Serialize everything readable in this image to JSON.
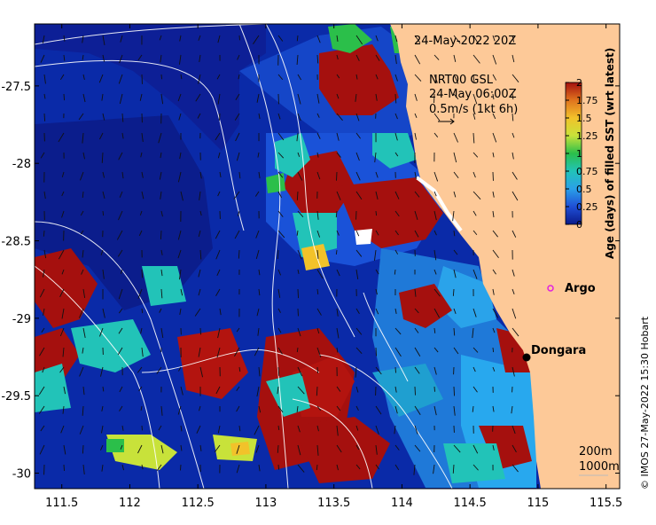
{
  "map": {
    "date_label": "24-May-2022 20Z",
    "current_title": "NRT00 GSL",
    "current_time": "24-May 06:00Z",
    "current_scale": "0.5m/s (1kt 6h)",
    "places": [
      {
        "name": "Argo",
        "lon": 115.15,
        "lat": -28.77,
        "marker": "magenta-ring"
      },
      {
        "name": "Dongara",
        "lon": 114.93,
        "lat": -29.25,
        "marker": "black-dot"
      }
    ],
    "contour_legend": [
      "200m",
      "1000m"
    ],
    "credit": "© IMOS 27-May-2022 15:30 Hobart",
    "axes": {
      "x_ticks": [
        "111.5",
        "112",
        "112.5",
        "113",
        "113.5",
        "114",
        "114.5",
        "115",
        "115.5"
      ],
      "y_ticks": [
        "-27.5",
        "-28",
        "-28.5",
        "-29",
        "-29.5",
        "-30"
      ],
      "lon_range": [
        111.3,
        115.6
      ],
      "lat_range": [
        -30.1,
        -27.1
      ]
    },
    "colorbar": {
      "label": "Age (days) of filled SST (wrt latest)",
      "ticks": [
        "0",
        "0.25",
        "0.5",
        "0.75",
        "1",
        "1.25",
        "1.5",
        "1.75",
        "2"
      ],
      "range": [
        0,
        2
      ],
      "colors": [
        "#0a1a8a",
        "#1f4fd6",
        "#2aa0e8",
        "#22c3b8",
        "#2bbf4a",
        "#c8e23a",
        "#f2c22a",
        "#e0731e",
        "#a5100e"
      ]
    },
    "land_color": "#fdc998"
  }
}
